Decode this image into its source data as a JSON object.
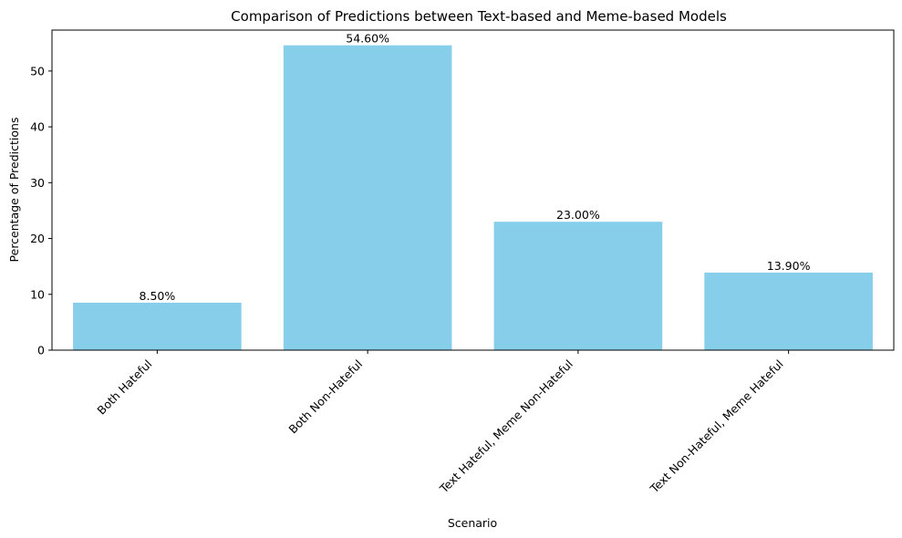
{
  "chart_data": {
    "type": "bar",
    "title": "Comparison of Predictions between Text-based and Meme-based Models",
    "xlabel": "Scenario",
    "ylabel": "Percentage of Predictions",
    "categories": [
      "Both Hateful",
      "Both Non-Hateful",
      "Text Hateful, Meme Non-Hateful",
      "Text Non-Hateful, Meme Hateful"
    ],
    "values": [
      8.5,
      54.6,
      23.0,
      13.9
    ],
    "data_labels": [
      "8.50%",
      "54.60%",
      "23.00%",
      "13.90%"
    ],
    "ylim": [
      0,
      57.33
    ],
    "yticks": [
      0,
      10,
      20,
      30,
      40,
      50
    ],
    "bar_color": "#87CEEB",
    "grid": false,
    "legend": "none"
  }
}
